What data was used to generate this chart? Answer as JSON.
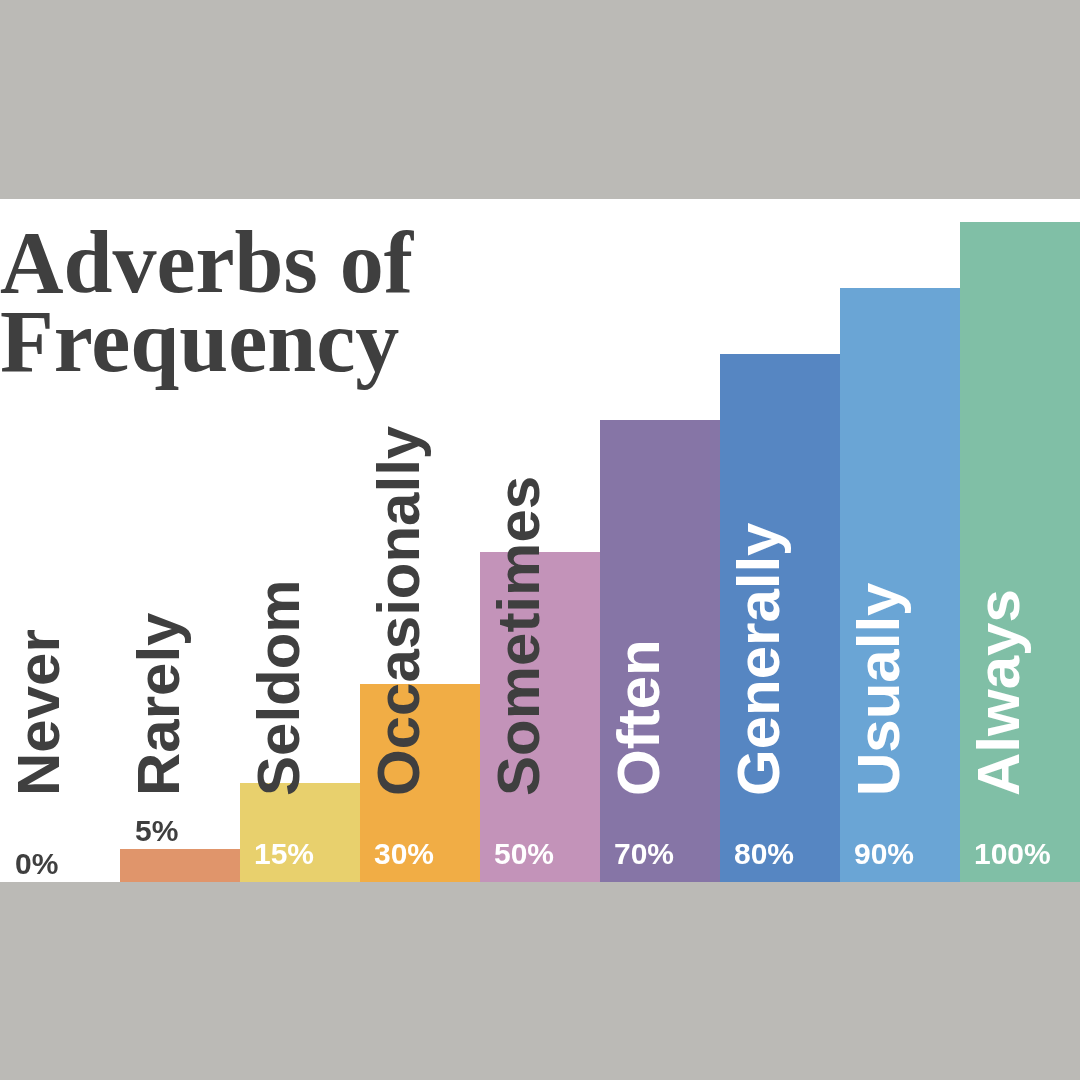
{
  "chart_data": {
    "type": "bar",
    "title": "Adverbs of Frequency",
    "categories": [
      "Never",
      "Rarely",
      "Seldom",
      "Occasionally",
      "Sometimes",
      "Often",
      "Generally",
      "Usually",
      "Always"
    ],
    "values": [
      0,
      5,
      15,
      30,
      50,
      70,
      80,
      90,
      100
    ],
    "colors": [
      "#d9652c",
      "#e0956b",
      "#e8d06d",
      "#f1ad45",
      "#c393b9",
      "#8675a6",
      "#5686c2",
      "#6aa5d5",
      "#80bfa6"
    ],
    "value_labels": [
      "0%",
      "5%",
      "15%",
      "30%",
      "50%",
      "70%",
      "80%",
      "90%",
      "100%"
    ]
  }
}
